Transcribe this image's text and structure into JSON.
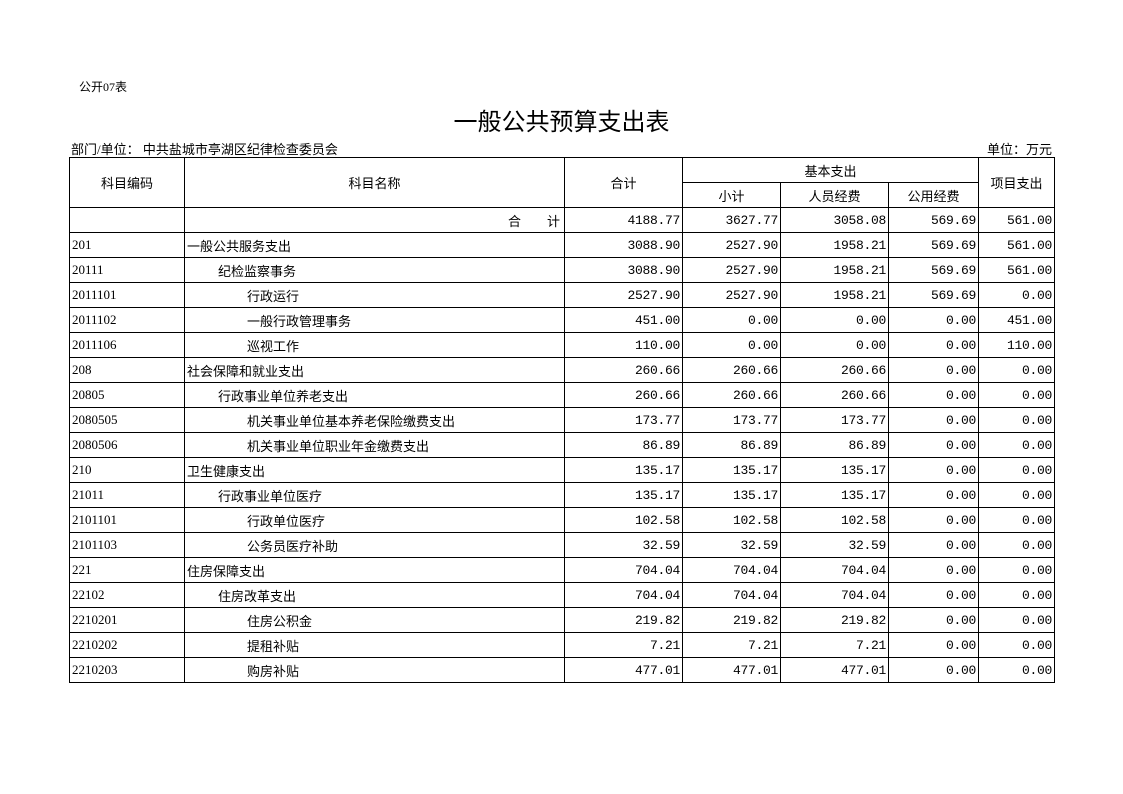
{
  "form_no": "公开07表",
  "title": "一般公共预算支出表",
  "department": "部门/单位：  中共盐城市亭湖区纪律检查委员会",
  "unit": "单位：万元",
  "headers": {
    "code": "科目编码",
    "name": "科目名称",
    "total": "合计",
    "basic": "基本支出",
    "subtotal": "小计",
    "personnel": "人员经费",
    "public": "公用经费",
    "project": "项目支出"
  },
  "total_row": {
    "label": "合　　计",
    "total": "4188.77",
    "subtotal": "3627.77",
    "personnel": "3058.08",
    "public": "569.69",
    "project": "561.00"
  },
  "rows": [
    {
      "code": "201",
      "name": "一般公共服务支出",
      "level": 0,
      "total": "3088.90",
      "subtotal": "2527.90",
      "personnel": "1958.21",
      "public": "569.69",
      "project": "561.00"
    },
    {
      "code": "20111",
      "name": "纪检监察事务",
      "level": 1,
      "total": "3088.90",
      "subtotal": "2527.90",
      "personnel": "1958.21",
      "public": "569.69",
      "project": "561.00"
    },
    {
      "code": "2011101",
      "name": "行政运行",
      "level": 2,
      "total": "2527.90",
      "subtotal": "2527.90",
      "personnel": "1958.21",
      "public": "569.69",
      "project": "0.00"
    },
    {
      "code": "2011102",
      "name": "一般行政管理事务",
      "level": 2,
      "total": "451.00",
      "subtotal": "0.00",
      "personnel": "0.00",
      "public": "0.00",
      "project": "451.00"
    },
    {
      "code": "2011106",
      "name": "巡视工作",
      "level": 2,
      "total": "110.00",
      "subtotal": "0.00",
      "personnel": "0.00",
      "public": "0.00",
      "project": "110.00"
    },
    {
      "code": "208",
      "name": "社会保障和就业支出",
      "level": 0,
      "total": "260.66",
      "subtotal": "260.66",
      "personnel": "260.66",
      "public": "0.00",
      "project": "0.00"
    },
    {
      "code": "20805",
      "name": "行政事业单位养老支出",
      "level": 1,
      "total": "260.66",
      "subtotal": "260.66",
      "personnel": "260.66",
      "public": "0.00",
      "project": "0.00"
    },
    {
      "code": "2080505",
      "name": "机关事业单位基本养老保险缴费支出",
      "level": 2,
      "total": "173.77",
      "subtotal": "173.77",
      "personnel": "173.77",
      "public": "0.00",
      "project": "0.00"
    },
    {
      "code": "2080506",
      "name": "机关事业单位职业年金缴费支出",
      "level": 2,
      "total": "86.89",
      "subtotal": "86.89",
      "personnel": "86.89",
      "public": "0.00",
      "project": "0.00"
    },
    {
      "code": "210",
      "name": "卫生健康支出",
      "level": 0,
      "total": "135.17",
      "subtotal": "135.17",
      "personnel": "135.17",
      "public": "0.00",
      "project": "0.00"
    },
    {
      "code": "21011",
      "name": "行政事业单位医疗",
      "level": 1,
      "total": "135.17",
      "subtotal": "135.17",
      "personnel": "135.17",
      "public": "0.00",
      "project": "0.00"
    },
    {
      "code": "2101101",
      "name": "行政单位医疗",
      "level": 2,
      "total": "102.58",
      "subtotal": "102.58",
      "personnel": "102.58",
      "public": "0.00",
      "project": "0.00"
    },
    {
      "code": "2101103",
      "name": "公务员医疗补助",
      "level": 2,
      "total": "32.59",
      "subtotal": "32.59",
      "personnel": "32.59",
      "public": "0.00",
      "project": "0.00"
    },
    {
      "code": "221",
      "name": "住房保障支出",
      "level": 0,
      "total": "704.04",
      "subtotal": "704.04",
      "personnel": "704.04",
      "public": "0.00",
      "project": "0.00"
    },
    {
      "code": "22102",
      "name": "住房改革支出",
      "level": 1,
      "total": "704.04",
      "subtotal": "704.04",
      "personnel": "704.04",
      "public": "0.00",
      "project": "0.00"
    },
    {
      "code": "2210201",
      "name": "住房公积金",
      "level": 2,
      "total": "219.82",
      "subtotal": "219.82",
      "personnel": "219.82",
      "public": "0.00",
      "project": "0.00"
    },
    {
      "code": "2210202",
      "name": "提租补贴",
      "level": 2,
      "total": "7.21",
      "subtotal": "7.21",
      "personnel": "7.21",
      "public": "0.00",
      "project": "0.00"
    },
    {
      "code": "2210203",
      "name": "购房补贴",
      "level": 2,
      "total": "477.01",
      "subtotal": "477.01",
      "personnel": "477.01",
      "public": "0.00",
      "project": "0.00"
    }
  ]
}
